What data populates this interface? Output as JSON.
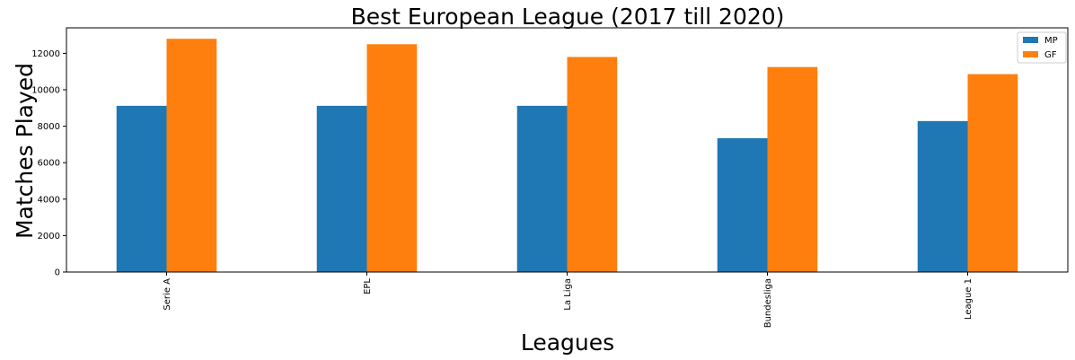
{
  "colors": {
    "MP": "#1f77b4",
    "GF": "#ff7f0e",
    "frame": "#000000"
  },
  "chart_data": {
    "type": "bar",
    "title": "Best European League (2017 till 2020)",
    "xlabel": "Leagues",
    "ylabel": "Matches Played",
    "categories": [
      "Serie A",
      "EPL",
      "La Liga",
      "Bundesliga",
      "League 1"
    ],
    "series": [
      {
        "name": "MP",
        "values": [
          9120,
          9120,
          9120,
          7344,
          8284
        ]
      },
      {
        "name": "GF",
        "values": [
          12800,
          12500,
          11800,
          11250,
          10860
        ]
      }
    ],
    "ylim": [
      0,
      13400
    ],
    "yticks": [
      0,
      2000,
      4000,
      6000,
      8000,
      10000,
      12000
    ],
    "grid": false,
    "legend": "top-right"
  }
}
